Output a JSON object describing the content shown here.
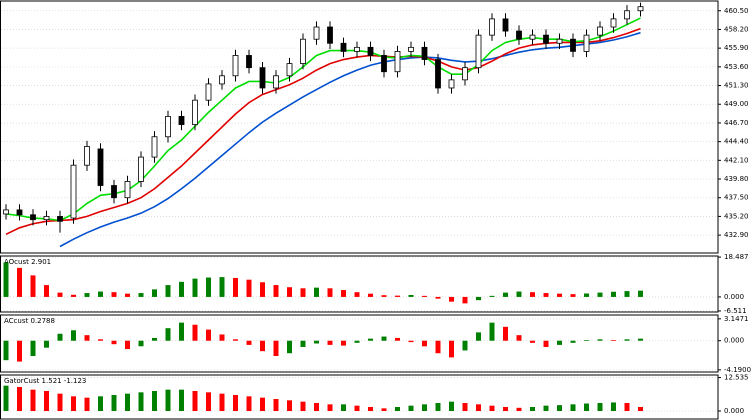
{
  "chart_data": [
    {
      "type": "candlestick",
      "grid": true,
      "up_fill": "#ffffff",
      "down_fill": "#000000",
      "wick_color": "#000000",
      "ylim": [
        430.7,
        461.7
      ],
      "yticks": [
        {
          "value": 460.5,
          "label": "460.50"
        },
        {
          "value": 458.2,
          "label": "458.20"
        },
        {
          "value": 455.9,
          "label": "455.90"
        },
        {
          "value": 453.6,
          "label": "453.60"
        },
        {
          "value": 451.3,
          "label": "451.30"
        },
        {
          "value": 449.0,
          "label": "449.00"
        },
        {
          "value": 446.7,
          "label": "446.70"
        },
        {
          "value": 444.4,
          "label": "444.40"
        },
        {
          "value": 442.1,
          "label": "442.10"
        },
        {
          "value": 439.8,
          "label": "439.80"
        },
        {
          "value": 437.5,
          "label": "437.50"
        },
        {
          "value": 435.2,
          "label": "435.20"
        },
        {
          "value": 432.9,
          "label": "432.90"
        }
      ],
      "open": [
        435.5,
        436.0,
        435.4,
        434.8,
        435.2,
        435.0,
        441.5,
        443.5,
        439.0,
        437.5,
        439.5,
        442.5,
        445.0,
        447.5,
        446.5,
        449.5,
        451.5,
        452.5,
        455.0,
        453.5,
        451.0,
        452.5,
        454.0,
        457.0,
        458.5,
        456.5,
        455.5,
        456.0,
        455.0,
        453.0,
        455.5,
        456.0,
        454.5,
        451.0,
        452.0,
        453.5,
        457.5,
        459.5,
        458.0,
        457.0,
        457.5,
        456.5,
        457.0,
        455.5,
        457.5,
        458.5,
        459.5,
        460.5
      ],
      "high": [
        436.7,
        436.7,
        436.1,
        435.9,
        435.9,
        442.2,
        444.5,
        444.2,
        439.7,
        440.2,
        443.2,
        445.7,
        448.2,
        448.2,
        450.2,
        452.2,
        453.2,
        455.7,
        455.7,
        454.2,
        453.2,
        454.7,
        457.7,
        459.2,
        459.2,
        457.2,
        456.7,
        456.7,
        455.7,
        456.2,
        456.7,
        456.7,
        455.2,
        452.7,
        454.2,
        458.2,
        460.2,
        460.2,
        458.7,
        458.2,
        458.2,
        457.7,
        457.7,
        458.2,
        459.2,
        460.2,
        461.2,
        461.5
      ],
      "low": [
        434.8,
        434.7,
        434.1,
        434.1,
        433.2,
        434.3,
        440.8,
        438.3,
        436.8,
        436.8,
        438.8,
        441.8,
        444.3,
        445.8,
        445.8,
        448.8,
        450.8,
        451.8,
        452.8,
        450.3,
        450.3,
        451.8,
        453.3,
        456.3,
        455.8,
        454.8,
        454.8,
        454.3,
        452.3,
        452.3,
        454.8,
        453.8,
        450.3,
        450.3,
        451.3,
        452.8,
        456.8,
        457.3,
        456.3,
        456.3,
        455.8,
        455.8,
        454.8,
        454.8,
        456.8,
        457.8,
        458.8,
        459.8
      ],
      "close": [
        436.0,
        435.4,
        434.8,
        435.2,
        434.6,
        441.5,
        443.8,
        439.0,
        437.5,
        439.5,
        442.5,
        445.0,
        447.5,
        446.5,
        449.5,
        451.5,
        452.5,
        455.0,
        453.5,
        451.0,
        452.5,
        454.0,
        457.0,
        458.5,
        456.5,
        455.5,
        456.0,
        455.0,
        453.0,
        455.5,
        456.0,
        454.5,
        451.0,
        452.0,
        453.5,
        457.5,
        459.5,
        458.0,
        457.0,
        457.5,
        456.5,
        457.0,
        455.5,
        457.5,
        458.5,
        459.5,
        460.5,
        461.0
      ],
      "series": [
        {
          "color": "#0050d0",
          "values": [
            null,
            null,
            null,
            null,
            431.5,
            432.4,
            433.2,
            433.9,
            434.5,
            435.0,
            435.6,
            436.4,
            437.4,
            438.6,
            439.9,
            441.3,
            442.7,
            444.1,
            445.5,
            446.8,
            447.9,
            448.9,
            449.9,
            450.8,
            451.7,
            452.5,
            453.2,
            453.8,
            454.2,
            454.5,
            454.7,
            454.8,
            454.7,
            454.4,
            454.2,
            454.3,
            454.6,
            455.0,
            455.4,
            455.7,
            455.9,
            456.0,
            456.2,
            456.4,
            456.6,
            456.9,
            457.3,
            457.8
          ]
        },
        {
          "color": "#e00000",
          "values": [
            433.0,
            433.8,
            434.3,
            434.6,
            434.7,
            434.8,
            435.2,
            435.8,
            436.3,
            436.8,
            437.5,
            438.6,
            440.0,
            441.4,
            443.0,
            444.6,
            446.2,
            447.8,
            449.2,
            450.2,
            450.8,
            451.4,
            452.2,
            453.2,
            454.0,
            454.5,
            454.8,
            455.0,
            454.9,
            454.8,
            454.9,
            454.8,
            454.3,
            453.6,
            453.2,
            453.5,
            454.3,
            455.2,
            455.9,
            456.3,
            456.5,
            456.6,
            456.6,
            456.6,
            456.8,
            457.2,
            457.7,
            458.3
          ]
        },
        {
          "color": "#00dd00",
          "values": [
            435.5,
            435.3,
            435.0,
            434.9,
            434.7,
            435.5,
            436.8,
            437.8,
            438.0,
            438.4,
            439.6,
            441.4,
            443.3,
            444.6,
            446.3,
            448.0,
            449.5,
            451.0,
            451.8,
            451.8,
            451.6,
            452.3,
            453.6,
            455.0,
            455.6,
            455.6,
            455.6,
            455.4,
            454.8,
            454.7,
            455.0,
            454.9,
            453.6,
            452.7,
            452.7,
            453.9,
            455.6,
            456.6,
            457.0,
            457.2,
            457.0,
            457.0,
            456.7,
            456.8,
            457.3,
            458.0,
            458.8,
            459.6
          ]
        }
      ]
    },
    {
      "type": "bar",
      "title": "AOcust 2.901",
      "grid": true,
      "up_color": "#008000",
      "down_color": "#ff0000",
      "ylim": [
        -7,
        19
      ],
      "yticks": [
        18.487,
        {
          "value": 0,
          "label": "0.000"
        },
        -6.511
      ],
      "values": [
        16.0,
        13.5,
        10.0,
        5.5,
        2.0,
        1.0,
        1.8,
        2.5,
        2.2,
        1.5,
        1.8,
        3.5,
        5.5,
        7.0,
        8.5,
        9.0,
        9.2,
        8.8,
        8.0,
        6.8,
        5.5,
        4.5,
        4.0,
        4.3,
        4.0,
        3.2,
        2.2,
        1.5,
        0.8,
        0.6,
        0.9,
        0.5,
        -0.8,
        -2.2,
        -3.0,
        -1.5,
        0.5,
        2.0,
        2.5,
        2.2,
        1.8,
        1.5,
        1.3,
        1.6,
        2.0,
        2.4,
        2.7,
        2.9
      ]
    },
    {
      "type": "bar",
      "title": "ACcust 0.2788",
      "grid": true,
      "up_color": "#008000",
      "down_color": "#ff0000",
      "ylim": [
        -4.5,
        3.7
      ],
      "yticks": [
        3.1471,
        {
          "value": 0,
          "label": "0.000"
        },
        {
          "value": -4.19,
          "label": "-4.1900"
        }
      ],
      "values": [
        -2.8,
        -3.0,
        -2.2,
        -1.0,
        1.0,
        1.5,
        0.8,
        0.2,
        -0.5,
        -1.2,
        -0.8,
        0.4,
        1.8,
        2.6,
        2.3,
        1.6,
        0.9,
        0.2,
        -0.6,
        -1.5,
        -2.2,
        -1.8,
        -0.9,
        -0.4,
        -0.6,
        -0.7,
        -0.3,
        0.3,
        0.6,
        0.4,
        -0.2,
        -0.8,
        -1.8,
        -2.4,
        -1.4,
        1.2,
        2.6,
        2.0,
        0.8,
        -0.3,
        -0.9,
        -0.6,
        -0.3,
        0.1,
        0.2,
        0.1,
        0.2,
        0.3
      ]
    },
    {
      "type": "bar",
      "title": "GatorCust 1.521 -1.123",
      "grid": true,
      "up_color": "#008000",
      "down_color": "#ff0000",
      "ylim": [
        -3,
        13.5
      ],
      "yticks": [
        12.535,
        {
          "value": 0,
          "label": "0.000"
        }
      ],
      "values": [
        9.5,
        9.0,
        8.0,
        7.5,
        6.5,
        5.5,
        5.0,
        5.5,
        6.0,
        6.5,
        7.0,
        7.5,
        8.0,
        8.0,
        7.5,
        7.0,
        6.5,
        6.0,
        5.5,
        5.0,
        4.5,
        4.0,
        3.5,
        3.0,
        2.5,
        2.5,
        2.0,
        1.5,
        1.0,
        1.5,
        2.0,
        2.5,
        3.0,
        3.5,
        3.0,
        2.5,
        2.0,
        1.5,
        1.2,
        1.5,
        2.0,
        2.2,
        2.5,
        2.8,
        3.0,
        3.2,
        3.0,
        1.5
      ]
    }
  ]
}
